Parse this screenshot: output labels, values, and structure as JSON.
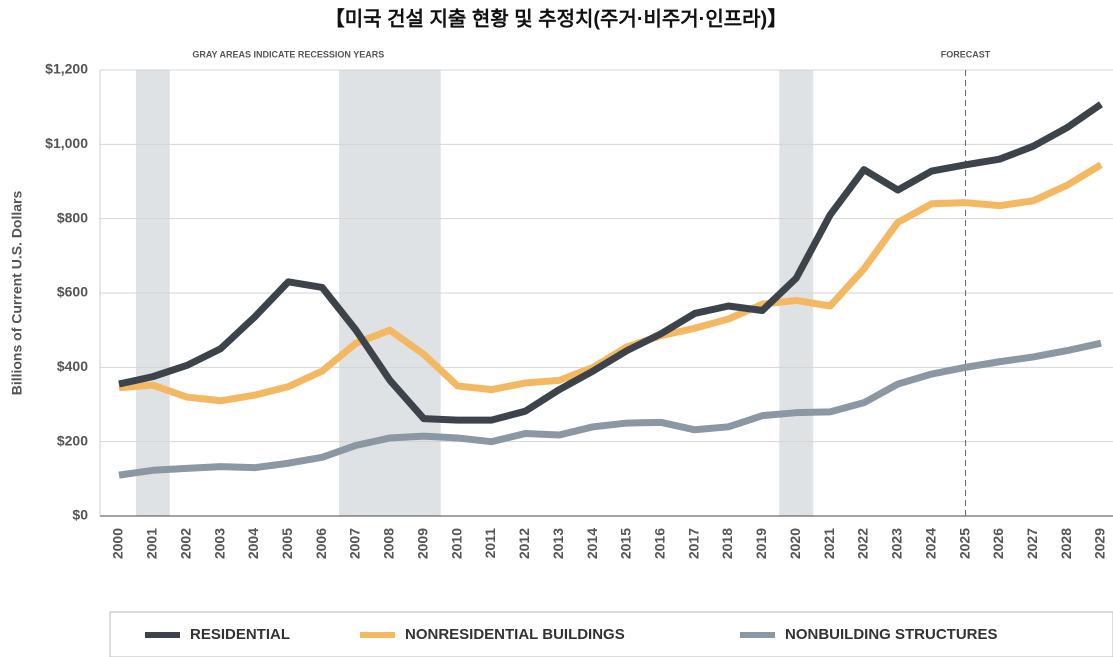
{
  "chart_data": {
    "type": "line",
    "title": "【미국 건설 지출 현황 및 추정치(주거·비주거·인프라)】",
    "y_label": "Billions of Current U.S. Dollars",
    "annotations": [
      "GRAY AREAS INDICATE RECESSION YEARS",
      "FORECAST"
    ],
    "forecast_start": 2025,
    "recessions": [
      [
        2000.5,
        2001.5
      ],
      [
        2006.5,
        2009.5
      ],
      [
        2019.5,
        2020.5
      ]
    ],
    "x": [
      2000,
      2001,
      2002,
      2003,
      2004,
      2005,
      2006,
      2007,
      2008,
      2009,
      2010,
      2011,
      2012,
      2013,
      2014,
      2015,
      2016,
      2017,
      2018,
      2019,
      2020,
      2021,
      2022,
      2023,
      2024,
      2025,
      2026,
      2027,
      2028,
      2029
    ],
    "xlim": [
      2000,
      2029
    ],
    "xticks": [
      2000,
      2001,
      2002,
      2003,
      2004,
      2005,
      2006,
      2007,
      2008,
      2009,
      2010,
      2011,
      2012,
      2013,
      2014,
      2015,
      2016,
      2017,
      2018,
      2019,
      2020,
      2021,
      2022,
      2023,
      2024,
      2025,
      2026,
      2027,
      2028,
      2029
    ],
    "ylim": [
      0,
      1200
    ],
    "yticks": [
      {
        "value": 0,
        "label": "$0"
      },
      {
        "value": 200,
        "label": "$200"
      },
      {
        "value": 400,
        "label": "$400"
      },
      {
        "value": 600,
        "label": "$600"
      },
      {
        "value": 800,
        "label": "$800"
      },
      {
        "value": 1000,
        "label": "$1,000"
      },
      {
        "value": 1200,
        "label": "$1,200"
      }
    ],
    "grid": true,
    "legend": "bottom",
    "series": [
      {
        "name": "RESIDENTIAL",
        "color": "#3d434b",
        "values": [
          355,
          375,
          405,
          450,
          535,
          630,
          615,
          500,
          365,
          262,
          258,
          258,
          282,
          340,
          390,
          445,
          490,
          545,
          565,
          553,
          640,
          810,
          932,
          877,
          928,
          945,
          960,
          995,
          1045,
          1108
        ]
      },
      {
        "name": "NONRESIDENTIAL BUILDINGS",
        "color": "#f5b862",
        "values": [
          345,
          352,
          320,
          310,
          325,
          348,
          390,
          465,
          500,
          435,
          350,
          340,
          358,
          365,
          400,
          455,
          485,
          505,
          530,
          570,
          580,
          565,
          665,
          790,
          840,
          843,
          835,
          848,
          890,
          945
        ]
      },
      {
        "name": "NONBUILDING STRUCTURES",
        "color": "#8b97a3",
        "values": [
          110,
          123,
          128,
          133,
          130,
          142,
          158,
          190,
          210,
          215,
          210,
          200,
          222,
          218,
          240,
          250,
          252,
          232,
          240,
          270,
          278,
          280,
          305,
          355,
          382,
          400,
          415,
          428,
          445,
          465
        ]
      }
    ]
  }
}
